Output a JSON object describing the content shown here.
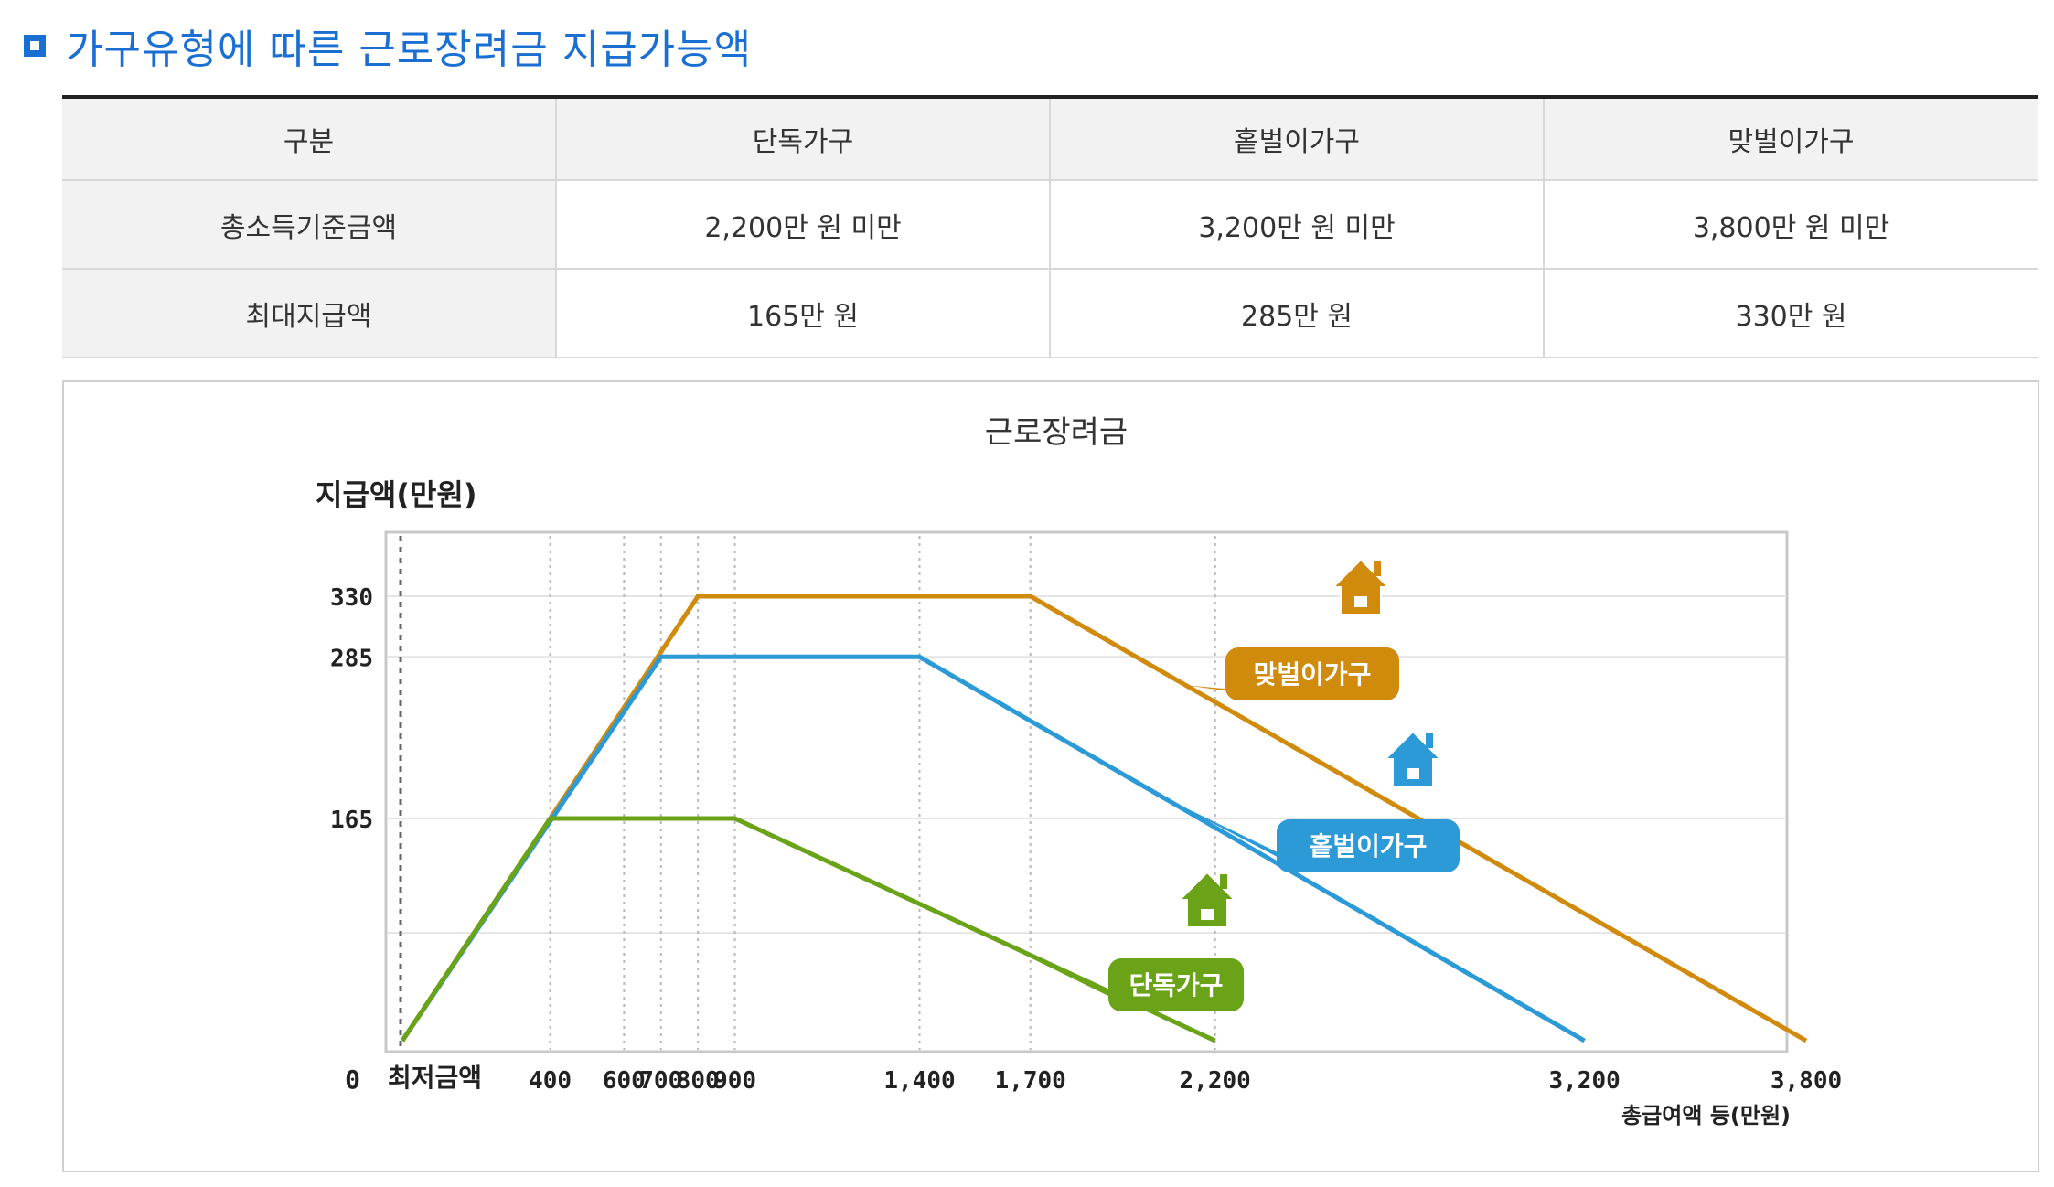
{
  "heading": {
    "icon": "square-bullet-icon",
    "text": "가구유형에 따른 근로장려금 지급가능액",
    "color": "#1a6fd2"
  },
  "table": {
    "headers": [
      "구분",
      "단독가구",
      "홑벌이가구",
      "맞벌이가구"
    ],
    "rows": [
      [
        "총소득기준금액",
        "2,200만 원 미만",
        "3,200만 원 미만",
        "3,800만 원 미만"
      ],
      [
        "최대지급액",
        "165만 원",
        "285만 원",
        "330만 원"
      ]
    ]
  },
  "chart_data": {
    "type": "line",
    "title": "근로장려금",
    "ylabel": "지급액(만원)",
    "xlabel": "총급여액 등(만원)",
    "origin_label": "0",
    "min_wage_label": "최저금액",
    "grid": true,
    "x_ticks": [
      400,
      600,
      700,
      800,
      900,
      1400,
      1700,
      2200,
      3200,
      3800
    ],
    "x_tick_labels": [
      "400",
      "600",
      "700",
      "800",
      "900",
      "1,400",
      "1,700",
      "2,200",
      "3,200",
      "3,800"
    ],
    "y_ticks": [
      165,
      285,
      330
    ],
    "y_tick_labels": [
      "165",
      "285",
      "330"
    ],
    "series": [
      {
        "name": "맞벌이가구",
        "color": "#d08a0c",
        "icon": "house-icon",
        "points": [
          [
            0,
            0
          ],
          [
            800,
            330
          ],
          [
            1700,
            330
          ],
          [
            3800,
            0
          ]
        ]
      },
      {
        "name": "홑벌이가구",
        "color": "#2b9ad6",
        "icon": "house-icon",
        "points": [
          [
            0,
            0
          ],
          [
            700,
            285
          ],
          [
            1400,
            285
          ],
          [
            3200,
            0
          ]
        ]
      },
      {
        "name": "단독가구",
        "color": "#6aa317",
        "icon": "house-icon",
        "points": [
          [
            0,
            0
          ],
          [
            400,
            165
          ],
          [
            900,
            165
          ],
          [
            2200,
            0
          ]
        ]
      }
    ]
  }
}
